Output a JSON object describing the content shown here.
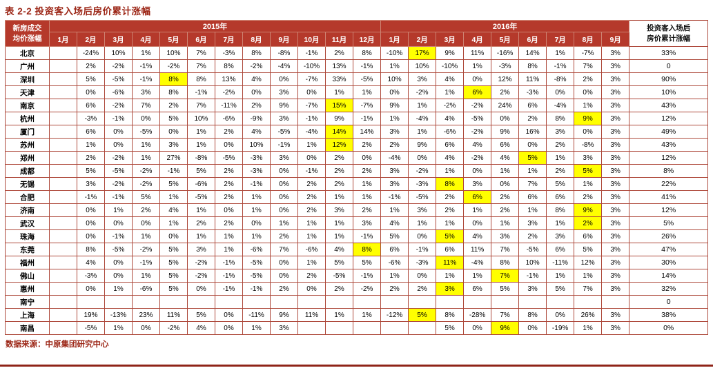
{
  "title": "表 2-2 投资客入场后房价累计涨幅",
  "source": "数据来源：中原集团研究中心",
  "colors": {
    "header_bg": "#B5392B",
    "border": "#AD4739",
    "title_text": "#9C2616",
    "highlight": "#FFFF00"
  },
  "table": {
    "corner_header_line1": "新房成交",
    "corner_header_line2": "均价涨幅",
    "cumulative_header_line1": "投资客入场后",
    "cumulative_header_line2": "房价累计涨幅",
    "year_headers": [
      "2015年",
      "2016年"
    ],
    "months_2015": [
      "1月",
      "2月",
      "3月",
      "4月",
      "5月",
      "6月",
      "7月",
      "8月",
      "9月",
      "10月",
      "11月",
      "12月"
    ],
    "months_2016": [
      "1月",
      "2月",
      "3月",
      "4月",
      "5月",
      "6月",
      "7月",
      "8月",
      "9月"
    ],
    "rows": [
      {
        "city": "北京",
        "values": [
          "",
          "-24%",
          "10%",
          "1%",
          "10%",
          "7%",
          "-3%",
          "8%",
          "-8%",
          "-1%",
          "2%",
          "8%",
          "-10%",
          "17%",
          "9%",
          "11%",
          "-16%",
          "14%",
          "1%",
          "-7%",
          "3%"
        ],
        "highlight_index": 13,
        "cumulative": "33%"
      },
      {
        "city": "广州",
        "values": [
          "",
          "2%",
          "-2%",
          "-1%",
          "-2%",
          "7%",
          "8%",
          "-2%",
          "-4%",
          "-10%",
          "13%",
          "-1%",
          "1%",
          "10%",
          "-10%",
          "1%",
          "-3%",
          "8%",
          "-1%",
          "7%",
          "3%"
        ],
        "highlight_index": null,
        "cumulative": "0"
      },
      {
        "city": "深圳",
        "values": [
          "",
          "5%",
          "-5%",
          "-1%",
          "8%",
          "8%",
          "13%",
          "4%",
          "0%",
          "-7%",
          "33%",
          "-5%",
          "10%",
          "3%",
          "4%",
          "0%",
          "12%",
          "11%",
          "-8%",
          "2%",
          "3%"
        ],
        "highlight_index": 4,
        "cumulative": "90%"
      },
      {
        "city": "天津",
        "values": [
          "",
          "0%",
          "-6%",
          "3%",
          "8%",
          "-1%",
          "-2%",
          "0%",
          "3%",
          "0%",
          "1%",
          "1%",
          "0%",
          "-2%",
          "1%",
          "6%",
          "2%",
          "-3%",
          "0%",
          "0%",
          "3%"
        ],
        "highlight_index": 15,
        "cumulative": "10%"
      },
      {
        "city": "南京",
        "values": [
          "",
          "6%",
          "-2%",
          "7%",
          "2%",
          "7%",
          "-11%",
          "2%",
          "9%",
          "-7%",
          "15%",
          "-7%",
          "9%",
          "1%",
          "-2%",
          "-2%",
          "24%",
          "6%",
          "-4%",
          "1%",
          "3%"
        ],
        "highlight_index": 10,
        "cumulative": "43%"
      },
      {
        "city": "杭州",
        "values": [
          "",
          "-3%",
          "-1%",
          "0%",
          "5%",
          "10%",
          "-6%",
          "-9%",
          "3%",
          "-1%",
          "9%",
          "-1%",
          "1%",
          "-4%",
          "4%",
          "-5%",
          "0%",
          "2%",
          "8%",
          "9%",
          "3%"
        ],
        "highlight_index": 19,
        "cumulative": "12%"
      },
      {
        "city": "厦门",
        "values": [
          "",
          "6%",
          "0%",
          "-5%",
          "0%",
          "1%",
          "2%",
          "4%",
          "-5%",
          "-4%",
          "14%",
          "14%",
          "3%",
          "1%",
          "-6%",
          "-2%",
          "9%",
          "16%",
          "3%",
          "0%",
          "3%"
        ],
        "highlight_index": 10,
        "cumulative": "49%"
      },
      {
        "city": "苏州",
        "values": [
          "",
          "1%",
          "0%",
          "1%",
          "3%",
          "1%",
          "0%",
          "10%",
          "-1%",
          "1%",
          "12%",
          "2%",
          "2%",
          "9%",
          "6%",
          "4%",
          "6%",
          "0%",
          "2%",
          "-8%",
          "3%"
        ],
        "highlight_index": 10,
        "cumulative": "43%"
      },
      {
        "city": "郑州",
        "values": [
          "",
          "2%",
          "-2%",
          "1%",
          "27%",
          "-8%",
          "-5%",
          "-3%",
          "3%",
          "0%",
          "2%",
          "0%",
          "-4%",
          "0%",
          "4%",
          "-2%",
          "4%",
          "5%",
          "1%",
          "3%",
          "3%"
        ],
        "highlight_index": 17,
        "cumulative": "12%"
      },
      {
        "city": "成都",
        "values": [
          "",
          "5%",
          "-5%",
          "-2%",
          "-1%",
          "5%",
          "2%",
          "-3%",
          "0%",
          "-1%",
          "2%",
          "2%",
          "3%",
          "-2%",
          "1%",
          "0%",
          "1%",
          "1%",
          "2%",
          "5%",
          "3%"
        ],
        "highlight_index": 19,
        "cumulative": "8%"
      },
      {
        "city": "无锡",
        "values": [
          "",
          "3%",
          "-2%",
          "-2%",
          "5%",
          "-6%",
          "2%",
          "-1%",
          "0%",
          "2%",
          "2%",
          "1%",
          "3%",
          "-3%",
          "8%",
          "3%",
          "0%",
          "7%",
          "5%",
          "1%",
          "3%"
        ],
        "highlight_index": 14,
        "cumulative": "22%"
      },
      {
        "city": "合肥",
        "values": [
          "",
          "-1%",
          "-1%",
          "5%",
          "1%",
          "-5%",
          "2%",
          "1%",
          "0%",
          "2%",
          "1%",
          "1%",
          "-1%",
          "-5%",
          "2%",
          "6%",
          "2%",
          "6%",
          "6%",
          "2%",
          "3%"
        ],
        "highlight_index": 15,
        "cumulative": "41%"
      },
      {
        "city": "济南",
        "values": [
          "",
          "0%",
          "1%",
          "2%",
          "4%",
          "1%",
          "0%",
          "1%",
          "0%",
          "2%",
          "3%",
          "2%",
          "1%",
          "3%",
          "2%",
          "1%",
          "2%",
          "1%",
          "8%",
          "9%",
          "3%"
        ],
        "highlight_index": 19,
        "cumulative": "12%"
      },
      {
        "city": "武汉",
        "values": [
          "",
          "0%",
          "0%",
          "0%",
          "1%",
          "2%",
          "2%",
          "0%",
          "1%",
          "1%",
          "1%",
          "3%",
          "4%",
          "1%",
          "1%",
          "0%",
          "1%",
          "3%",
          "1%",
          "2%",
          "3%"
        ],
        "highlight_index": 19,
        "cumulative": "5%"
      },
      {
        "city": "珠海",
        "values": [
          "",
          "0%",
          "-1%",
          "1%",
          "0%",
          "1%",
          "1%",
          "1%",
          "2%",
          "1%",
          "1%",
          "-1%",
          "5%",
          "0%",
          "5%",
          "4%",
          "3%",
          "2%",
          "3%",
          "6%",
          "3%"
        ],
        "highlight_index": 14,
        "cumulative": "26%"
      },
      {
        "city": "东莞",
        "values": [
          "",
          "8%",
          "-5%",
          "-2%",
          "5%",
          "3%",
          "1%",
          "-6%",
          "7%",
          "-6%",
          "4%",
          "8%",
          "6%",
          "-1%",
          "6%",
          "11%",
          "7%",
          "-5%",
          "6%",
          "5%",
          "3%"
        ],
        "highlight_index": 11,
        "cumulative": "47%"
      },
      {
        "city": "福州",
        "values": [
          "",
          "4%",
          "0%",
          "-1%",
          "5%",
          "-2%",
          "-1%",
          "-5%",
          "0%",
          "1%",
          "5%",
          "5%",
          "-6%",
          "-3%",
          "11%",
          "-4%",
          "8%",
          "10%",
          "-11%",
          "12%",
          "3%"
        ],
        "highlight_index": 14,
        "cumulative": "30%"
      },
      {
        "city": "佛山",
        "values": [
          "",
          "-3%",
          "0%",
          "1%",
          "5%",
          "-2%",
          "-1%",
          "-5%",
          "0%",
          "2%",
          "-5%",
          "-1%",
          "1%",
          "0%",
          "1%",
          "1%",
          "7%",
          "-1%",
          "1%",
          "1%",
          "3%"
        ],
        "highlight_index": 16,
        "cumulative": "14%"
      },
      {
        "city": "惠州",
        "values": [
          "",
          "0%",
          "1%",
          "-6%",
          "5%",
          "0%",
          "-1%",
          "-1%",
          "2%",
          "0%",
          "2%",
          "-2%",
          "2%",
          "2%",
          "3%",
          "6%",
          "5%",
          "3%",
          "5%",
          "7%",
          "3%"
        ],
        "highlight_index": 14,
        "cumulative": "32%"
      },
      {
        "city": "南宁",
        "values": [
          "",
          "",
          "",
          "",
          "",
          "",
          "",
          "",
          "",
          "",
          "",
          "",
          "",
          "",
          "",
          "",
          "",
          "",
          "",
          "",
          ""
        ],
        "highlight_index": null,
        "cumulative": "0"
      },
      {
        "city": "上海",
        "values": [
          "",
          "19%",
          "-13%",
          "23%",
          "11%",
          "5%",
          "0%",
          "-11%",
          "9%",
          "11%",
          "1%",
          "1%",
          "-12%",
          "5%",
          "8%",
          "-28%",
          "7%",
          "8%",
          "0%",
          "26%",
          "3%"
        ],
        "highlight_index": 13,
        "cumulative": "38%"
      },
      {
        "city": "南昌",
        "values": [
          "",
          "-5%",
          "1%",
          "0%",
          "-2%",
          "4%",
          "0%",
          "1%",
          "3%",
          "",
          "",
          "",
          "",
          "",
          "5%",
          "0%",
          "9%",
          "0%",
          "-19%",
          "1%",
          "3%"
        ],
        "highlight_index": 16,
        "cumulative": "0%"
      }
    ]
  }
}
